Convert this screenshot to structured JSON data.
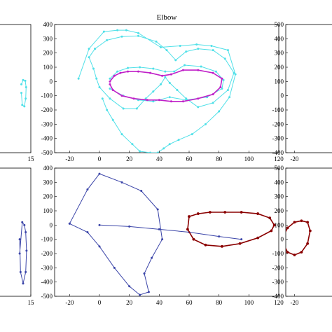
{
  "title": "Elbow",
  "colors": {
    "cyan": "#4fe0e8",
    "magenta": "#c020c8",
    "navy": "#3a44a8",
    "darkred": "#8a0000",
    "axis": "#000000",
    "background": "#ffffff"
  },
  "chart_data": [
    {
      "panel": "top-left",
      "type": "line",
      "xticks": [
        "15"
      ],
      "ylim": [
        -500,
        400
      ],
      "series": [
        {
          "color": "cyan",
          "x": [
            4.0,
            6.0,
            8.5,
            9.5,
            9.0,
            7.5,
            5.0,
            4.0
          ],
          "y": [
            -20,
            10,
            5,
            -40,
            -120,
            -175,
            -165,
            -80
          ]
        }
      ]
    },
    {
      "panel": "top-middle",
      "type": "line",
      "title": "Elbow",
      "xlim": [
        -30,
        120
      ],
      "ylim": [
        -500,
        400
      ],
      "xticks": [
        "-20",
        "0",
        "20",
        "40",
        "60",
        "80",
        "100",
        "120"
      ],
      "yticks": [
        "400",
        "300",
        "200",
        "100",
        "0",
        "-100",
        "-200",
        "-300",
        "-400",
        "-500"
      ],
      "series": [
        {
          "color": "cyan",
          "x": [
            -3,
            5,
            15,
            26,
            38,
            45,
            51,
            58,
            66,
            76,
            84,
            90,
            86,
            76,
            66,
            58,
            52,
            47,
            44,
            41,
            36,
            31,
            25,
            16,
            7,
            0,
            -2,
            -4,
            -7,
            -3
          ],
          "y": [
            230,
            290,
            315,
            320,
            280,
            220,
            150,
            210,
            230,
            220,
            160,
            60,
            -60,
            -150,
            -180,
            -120,
            -60,
            -10,
            30,
            -20,
            -70,
            -120,
            -190,
            -190,
            -120,
            -40,
            20,
            90,
            170,
            230
          ]
        },
        {
          "color": "cyan",
          "x": [
            -14,
            -7,
            3,
            12,
            18,
            26,
            41,
            54,
            65,
            75,
            86,
            91,
            87,
            80,
            71,
            62,
            53,
            47,
            43,
            39,
            34,
            27,
            22,
            15,
            9,
            5,
            2
          ],
          "y": [
            20,
            230,
            350,
            360,
            360,
            340,
            240,
            250,
            260,
            250,
            220,
            50,
            -110,
            -210,
            -300,
            -370,
            -410,
            -440,
            -470,
            -500,
            -500,
            -490,
            -440,
            -370,
            -270,
            -200,
            -120
          ]
        },
        {
          "color": "cyan",
          "x": [
            7,
            12,
            19,
            27,
            36,
            44,
            50,
            57,
            68,
            78,
            83,
            82,
            72,
            58,
            47,
            36,
            26,
            16,
            7
          ],
          "y": [
            20,
            70,
            95,
            100,
            90,
            70,
            70,
            115,
            105,
            70,
            10,
            -50,
            -110,
            -130,
            -110,
            -140,
            -130,
            -100,
            -50
          ]
        },
        {
          "color": "magenta",
          "x": [
            7,
            10,
            14,
            19,
            26,
            34,
            42,
            48,
            56,
            66,
            76,
            82,
            81,
            76,
            66,
            56,
            48,
            40,
            32,
            23,
            15,
            9,
            7
          ],
          "y": [
            0,
            40,
            60,
            70,
            70,
            60,
            40,
            50,
            80,
            80,
            60,
            20,
            -40,
            -90,
            -120,
            -140,
            -140,
            -130,
            -130,
            -120,
            -100,
            -60,
            -20
          ]
        }
      ]
    },
    {
      "panel": "top-right",
      "type": "line",
      "ylim": [
        -400,
        500
      ],
      "yticks": [
        "500",
        "400",
        "300",
        "200",
        "100",
        "0",
        "-100",
        "-200",
        "-300",
        "-400"
      ],
      "xticks": [
        "-20"
      ],
      "series": []
    },
    {
      "panel": "bottom-left",
      "type": "line",
      "xticks": [
        "15"
      ],
      "ylim": [
        -500,
        400
      ],
      "series": [
        {
          "color": "navy",
          "x": [
            2.0,
            5.0,
            7.5,
            9.0,
            10.0,
            9.0,
            6.0,
            3.0,
            2.0
          ],
          "y": [
            -200,
            20,
            0,
            -50,
            -180,
            -330,
            -410,
            -330,
            -100
          ]
        }
      ]
    },
    {
      "panel": "bottom-middle",
      "type": "line",
      "xlim": [
        -30,
        120
      ],
      "ylim": [
        -500,
        400
      ],
      "xticks": [
        "-20",
        "0",
        "20",
        "40",
        "60",
        "80",
        "100",
        "120"
      ],
      "yticks": [
        "400",
        "300",
        "200",
        "100",
        "0",
        "-100",
        "-200",
        "-300",
        "-400",
        "-500"
      ],
      "series": [
        {
          "color": "navy",
          "x": [
            -20,
            -8,
            0,
            15,
            28,
            39,
            42,
            35,
            30,
            33,
            27,
            20,
            10,
            0,
            -8,
            -20
          ],
          "y": [
            10,
            250,
            360,
            300,
            240,
            110,
            -100,
            -230,
            -340,
            -470,
            -490,
            -430,
            -300,
            -150,
            -50,
            10
          ]
        },
        {
          "color": "navy",
          "x": [
            0,
            20,
            40,
            60,
            80,
            95
          ],
          "y": [
            0,
            -10,
            -30,
            -50,
            -80,
            -100
          ]
        },
        {
          "color": "darkred",
          "x": [
            60,
            66,
            74,
            84,
            95,
            106,
            114,
            117,
            115,
            106,
            94,
            82,
            71,
            63,
            59,
            60
          ],
          "y": [
            60,
            80,
            90,
            90,
            90,
            80,
            50,
            0,
            -40,
            -90,
            -130,
            -150,
            -140,
            -100,
            -30,
            60
          ]
        }
      ]
    },
    {
      "panel": "bottom-right",
      "type": "line",
      "ylim": [
        -400,
        500
      ],
      "yticks": [
        "500",
        "400",
        "300",
        "200",
        "100",
        "0",
        "-100",
        "-200",
        "-300",
        "-400"
      ],
      "xticks": [
        "-20"
      ],
      "series": [
        {
          "color": "darkred",
          "x": [
            -33,
            -28,
            -20,
            -12,
            -5,
            -2,
            -5,
            -12,
            -20,
            -28,
            -32,
            -33
          ],
          "y": [
            20,
            80,
            120,
            130,
            120,
            60,
            -30,
            -90,
            -110,
            -90,
            -40,
            20
          ]
        }
      ]
    }
  ]
}
